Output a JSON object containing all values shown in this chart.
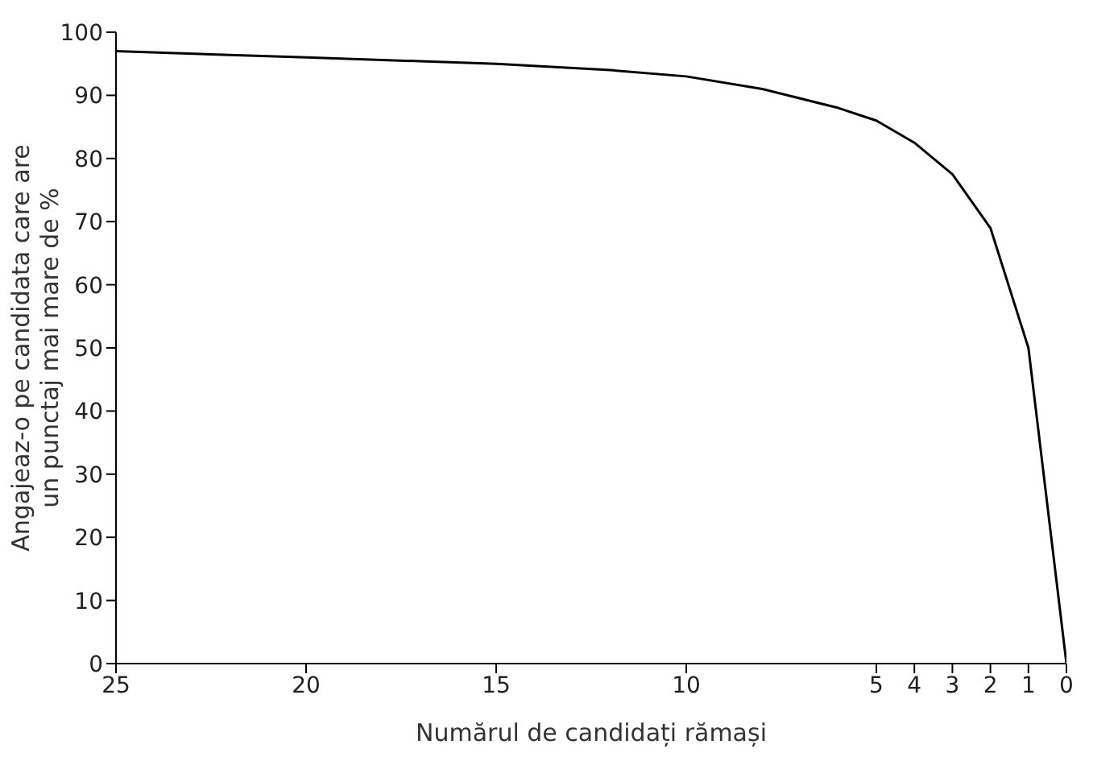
{
  "chart_data": {
    "type": "line",
    "xlabel": "Numărul de candidați rămași",
    "ylabel": "Angajeaz-o pe candidata care are\nun punctaj mai mare de %",
    "x": [
      25,
      20,
      15,
      12,
      10,
      8,
      7,
      6,
      5,
      4,
      3,
      2,
      1,
      0
    ],
    "series": [
      {
        "color": "#000000",
        "values": [
          97,
          96,
          95,
          94,
          93,
          91,
          89.5,
          88,
          86,
          82.5,
          77.5,
          69,
          50,
          0
        ]
      }
    ],
    "xlim": [
      25,
      0
    ],
    "xticks": [
      25,
      20,
      15,
      10,
      5,
      4,
      3,
      2,
      1,
      0
    ],
    "ylim": [
      0,
      100
    ],
    "yticks": [
      0,
      10,
      20,
      30,
      40,
      50,
      60,
      70,
      80,
      90,
      100
    ],
    "grid": false,
    "legend": false,
    "marker": "none",
    "line_style": "solid"
  }
}
